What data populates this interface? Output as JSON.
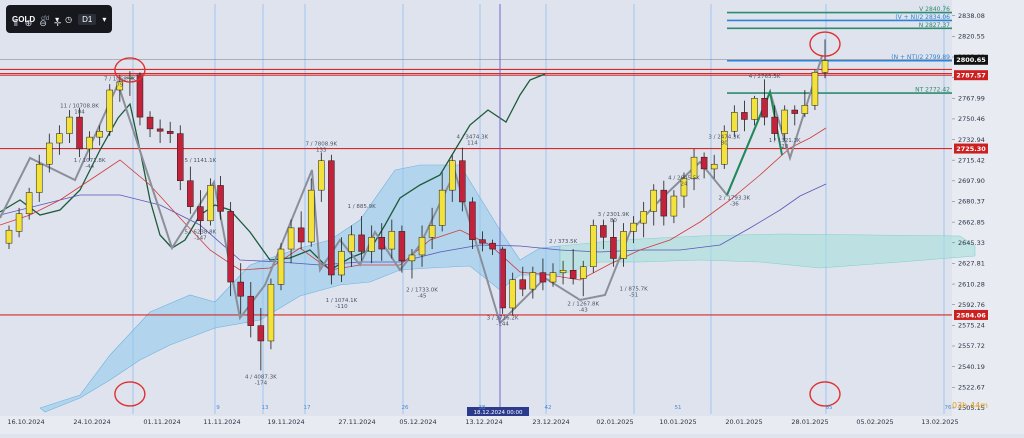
{
  "toolbar": {
    "symbol": "GOLD",
    "symbol_suffix": "cfd",
    "timeframe": "D1",
    "icons": [
      "indicators-icon",
      "zoom-in-icon",
      "zoom-out-icon",
      "crosshair-icon"
    ]
  },
  "countdown": {
    "hours": "03h",
    "minutes": "44m"
  },
  "crosshair_label": "18.12.2024 00:00",
  "chart_data": {
    "type": "candlestick",
    "title": "",
    "ylim": [
      2500,
      2848
    ],
    "y_ticks": [
      2838.08,
      2820.55,
      2803.02,
      2785.51,
      2767.99,
      2750.46,
      2732.94,
      2715.42,
      2697.9,
      2680.37,
      2662.85,
      2645.33,
      2627.81,
      2610.28,
      2592.76,
      2575.24,
      2557.72,
      2540.19,
      2522.67,
      2505.15
    ],
    "x_labels": [
      "16.10.2024",
      "24.10.2024",
      "01.11.2024",
      "11.11.2024",
      "19.11.2024",
      "27.11.2024",
      "05.12.2024",
      "13.12.2024",
      "23.12.2024",
      "02.01.2025",
      "10.01.2025",
      "20.01.2025",
      "28.01.2025",
      "05.02.2025",
      "13.02.2025"
    ],
    "week_numbers": [
      "9",
      "13",
      "17",
      "26",
      "38",
      "42",
      "51",
      "65",
      "76"
    ],
    "candles": [
      {
        "o": 2645,
        "h": 2660,
        "l": 2640,
        "c": 2656
      },
      {
        "o": 2655,
        "h": 2675,
        "l": 2650,
        "c": 2670
      },
      {
        "o": 2670,
        "h": 2692,
        "l": 2665,
        "c": 2688
      },
      {
        "o": 2688,
        "h": 2720,
        "l": 2680,
        "c": 2712
      },
      {
        "o": 2712,
        "h": 2738,
        "l": 2705,
        "c": 2730
      },
      {
        "o": 2730,
        "h": 2745,
        "l": 2720,
        "c": 2738
      },
      {
        "o": 2738,
        "h": 2758,
        "l": 2730,
        "c": 2752
      },
      {
        "o": 2752,
        "h": 2760,
        "l": 2718,
        "c": 2725
      },
      {
        "o": 2725,
        "h": 2740,
        "l": 2715,
        "c": 2735
      },
      {
        "o": 2735,
        "h": 2745,
        "l": 2728,
        "c": 2740
      },
      {
        "o": 2740,
        "h": 2780,
        "l": 2736,
        "c": 2775
      },
      {
        "o": 2775,
        "h": 2788,
        "l": 2765,
        "c": 2782
      },
      {
        "o": 2785,
        "h": 2791,
        "l": 2770,
        "c": 2786
      },
      {
        "o": 2788,
        "h": 2790,
        "l": 2745,
        "c": 2752
      },
      {
        "o": 2752,
        "h": 2757,
        "l": 2735,
        "c": 2742
      },
      {
        "o": 2742,
        "h": 2750,
        "l": 2730,
        "c": 2740
      },
      {
        "o": 2740,
        "h": 2748,
        "l": 2730,
        "c": 2738
      },
      {
        "o": 2738,
        "h": 2745,
        "l": 2690,
        "c": 2698
      },
      {
        "o": 2698,
        "h": 2710,
        "l": 2670,
        "c": 2676
      },
      {
        "o": 2676,
        "h": 2690,
        "l": 2652,
        "c": 2664
      },
      {
        "o": 2664,
        "h": 2700,
        "l": 2660,
        "c": 2694
      },
      {
        "o": 2694,
        "h": 2702,
        "l": 2665,
        "c": 2672
      },
      {
        "o": 2672,
        "h": 2680,
        "l": 2600,
        "c": 2612
      },
      {
        "o": 2612,
        "h": 2628,
        "l": 2585,
        "c": 2600
      },
      {
        "o": 2600,
        "h": 2612,
        "l": 2565,
        "c": 2575
      },
      {
        "o": 2575,
        "h": 2590,
        "l": 2537,
        "c": 2562
      },
      {
        "o": 2562,
        "h": 2615,
        "l": 2555,
        "c": 2610
      },
      {
        "o": 2610,
        "h": 2645,
        "l": 2605,
        "c": 2640
      },
      {
        "o": 2640,
        "h": 2665,
        "l": 2628,
        "c": 2658
      },
      {
        "o": 2658,
        "h": 2672,
        "l": 2640,
        "c": 2646
      },
      {
        "o": 2646,
        "h": 2700,
        "l": 2642,
        "c": 2690
      },
      {
        "o": 2690,
        "h": 2722,
        "l": 2680,
        "c": 2715
      },
      {
        "o": 2715,
        "h": 2720,
        "l": 2610,
        "c": 2618
      },
      {
        "o": 2618,
        "h": 2650,
        "l": 2612,
        "c": 2638
      },
      {
        "o": 2638,
        "h": 2660,
        "l": 2625,
        "c": 2652
      },
      {
        "o": 2652,
        "h": 2668,
        "l": 2630,
        "c": 2638
      },
      {
        "o": 2638,
        "h": 2660,
        "l": 2628,
        "c": 2650
      },
      {
        "o": 2650,
        "h": 2662,
        "l": 2630,
        "c": 2640
      },
      {
        "o": 2640,
        "h": 2665,
        "l": 2632,
        "c": 2655
      },
      {
        "o": 2655,
        "h": 2660,
        "l": 2620,
        "c": 2630
      },
      {
        "o": 2630,
        "h": 2640,
        "l": 2615,
        "c": 2635
      },
      {
        "o": 2635,
        "h": 2660,
        "l": 2625,
        "c": 2650
      },
      {
        "o": 2650,
        "h": 2675,
        "l": 2640,
        "c": 2660
      },
      {
        "o": 2660,
        "h": 2705,
        "l": 2655,
        "c": 2690
      },
      {
        "o": 2690,
        "h": 2720,
        "l": 2680,
        "c": 2715
      },
      {
        "o": 2715,
        "h": 2726,
        "l": 2672,
        "c": 2680
      },
      {
        "o": 2680,
        "h": 2684,
        "l": 2640,
        "c": 2648
      },
      {
        "o": 2648,
        "h": 2655,
        "l": 2638,
        "c": 2645
      },
      {
        "o": 2645,
        "h": 2648,
        "l": 2635,
        "c": 2640
      },
      {
        "o": 2640,
        "h": 2642,
        "l": 2585,
        "c": 2590
      },
      {
        "o": 2590,
        "h": 2620,
        "l": 2584,
        "c": 2614
      },
      {
        "o": 2614,
        "h": 2625,
        "l": 2600,
        "c": 2606
      },
      {
        "o": 2606,
        "h": 2625,
        "l": 2598,
        "c": 2620
      },
      {
        "o": 2620,
        "h": 2632,
        "l": 2605,
        "c": 2612
      },
      {
        "o": 2612,
        "h": 2628,
        "l": 2608,
        "c": 2620
      },
      {
        "o": 2620,
        "h": 2630,
        "l": 2610,
        "c": 2622
      },
      {
        "o": 2622,
        "h": 2640,
        "l": 2610,
        "c": 2615
      },
      {
        "o": 2615,
        "h": 2630,
        "l": 2600,
        "c": 2625
      },
      {
        "o": 2625,
        "h": 2665,
        "l": 2620,
        "c": 2660
      },
      {
        "o": 2660,
        "h": 2665,
        "l": 2640,
        "c": 2650
      },
      {
        "o": 2650,
        "h": 2665,
        "l": 2625,
        "c": 2632
      },
      {
        "o": 2632,
        "h": 2662,
        "l": 2625,
        "c": 2655
      },
      {
        "o": 2655,
        "h": 2668,
        "l": 2645,
        "c": 2662
      },
      {
        "o": 2662,
        "h": 2680,
        "l": 2650,
        "c": 2672
      },
      {
        "o": 2672,
        "h": 2695,
        "l": 2660,
        "c": 2690
      },
      {
        "o": 2690,
        "h": 2698,
        "l": 2660,
        "c": 2668
      },
      {
        "o": 2668,
        "h": 2690,
        "l": 2662,
        "c": 2685
      },
      {
        "o": 2685,
        "h": 2705,
        "l": 2675,
        "c": 2700
      },
      {
        "o": 2700,
        "h": 2725,
        "l": 2690,
        "c": 2718
      },
      {
        "o": 2718,
        "h": 2722,
        "l": 2700,
        "c": 2708
      },
      {
        "o": 2708,
        "h": 2720,
        "l": 2700,
        "c": 2712
      },
      {
        "o": 2712,
        "h": 2745,
        "l": 2708,
        "c": 2740
      },
      {
        "o": 2740,
        "h": 2762,
        "l": 2735,
        "c": 2756
      },
      {
        "o": 2756,
        "h": 2766,
        "l": 2740,
        "c": 2750
      },
      {
        "o": 2750,
        "h": 2770,
        "l": 2745,
        "c": 2768
      },
      {
        "o": 2768,
        "h": 2784,
        "l": 2745,
        "c": 2752
      },
      {
        "o": 2752,
        "h": 2762,
        "l": 2732,
        "c": 2738
      },
      {
        "o": 2738,
        "h": 2762,
        "l": 2732,
        "c": 2758
      },
      {
        "o": 2758,
        "h": 2762,
        "l": 2745,
        "c": 2755
      },
      {
        "o": 2755,
        "h": 2775,
        "l": 2752,
        "c": 2762
      },
      {
        "o": 2762,
        "h": 2792,
        "l": 2758,
        "c": 2790
      },
      {
        "o": 2790,
        "h": 2818,
        "l": 2785,
        "c": 2800
      }
    ],
    "horizontal_levels": [
      {
        "label": "V 2840.76",
        "value": 2840.76,
        "color": "#2e8b6e"
      },
      {
        "label": "(V + N)/2 2834.06",
        "value": 2834.06,
        "color": "#2f83d6"
      },
      {
        "label": "N 2827.37",
        "value": 2827.37,
        "color": "#2e8b6e"
      },
      {
        "label": "(N + NT)/2 2799.89",
        "value": 2799.89,
        "color": "#2f83d6"
      },
      {
        "label": "NT 2772.42",
        "value": 2772.42,
        "color": "#2e8b6e"
      }
    ],
    "red_levels": [
      2792.5,
      2789.0,
      2787.57,
      2725.3,
      2584.06
    ],
    "price_badges": [
      {
        "label": "2800.65",
        "value": 2800.65,
        "color": "#111111"
      },
      {
        "label": "2787.57",
        "value": 2787.57,
        "color": "#cc1f1f"
      },
      {
        "label": "2725.30",
        "value": 2725.3,
        "color": "#cc1f1f"
      },
      {
        "label": "2584.06",
        "value": 2584.06,
        "color": "#cc1f1f"
      }
    ],
    "wave_annotations": [
      {
        "i": 11,
        "y": 2783,
        "text": "7 / 1068.9K",
        "sub": "79"
      },
      {
        "i": 7,
        "y": 2760,
        "text": "11 / 10708.8K",
        "sub": "104"
      },
      {
        "i": 8,
        "y": 2714,
        "text": "1 / 1071.8K",
        "sub": "-44"
      },
      {
        "i": 19,
        "y": 2714,
        "text": "5 / 1141.1K",
        "sub": ""
      },
      {
        "i": 19,
        "y": 2653,
        "text": "5 / 6238.8K",
        "sub": "-147"
      },
      {
        "i": 25,
        "y": 2530,
        "text": "4 / 4087.3K",
        "sub": "-174"
      },
      {
        "i": 31,
        "y": 2728,
        "text": "7 / 7808.9K",
        "sub": "133"
      },
      {
        "i": 35,
        "y": 2675,
        "text": "1 / 885.9K",
        "sub": ""
      },
      {
        "i": 33,
        "y": 2595,
        "text": "1 / 1074.1K",
        "sub": "-110"
      },
      {
        "i": 41,
        "y": 2604,
        "text": "2 / 1733.0K",
        "sub": "-45"
      },
      {
        "i": 46,
        "y": 2734,
        "text": "4 / 3474.3K",
        "sub": "114"
      },
      {
        "i": 49,
        "y": 2580,
        "text": "3 / 3716.2K",
        "sub": "-144"
      },
      {
        "i": 55,
        "y": 2645,
        "text": "2 / 373.5K",
        "sub": ""
      },
      {
        "i": 57,
        "y": 2592,
        "text": "2 / 1267.8K",
        "sub": "-43"
      },
      {
        "i": 60,
        "y": 2668,
        "text": "3 / 2301.9K",
        "sub": "80"
      },
      {
        "i": 62,
        "y": 2605,
        "text": "1 / 875.7K",
        "sub": "-51"
      },
      {
        "i": 67,
        "y": 2699,
        "text": "4 / 2645.5K",
        "sub": "24"
      },
      {
        "i": 71,
        "y": 2734,
        "text": "3 / 2474.3K",
        "sub": "80"
      },
      {
        "i": 72,
        "y": 2682,
        "text": "2 / 1793.3K",
        "sub": "-36"
      },
      {
        "i": 75,
        "y": 2785,
        "text": "4 / 2765.5K",
        "sub": ""
      },
      {
        "i": 77,
        "y": 2731,
        "text": "1 / 1321.3K",
        "sub": "28"
      }
    ],
    "circled_points": [
      {
        "i": 12,
        "y": 2792
      },
      {
        "i": 81,
        "y": 2814
      },
      {
        "i": 12,
        "y": 2517
      },
      {
        "i": 81,
        "y": 2517
      }
    ]
  }
}
